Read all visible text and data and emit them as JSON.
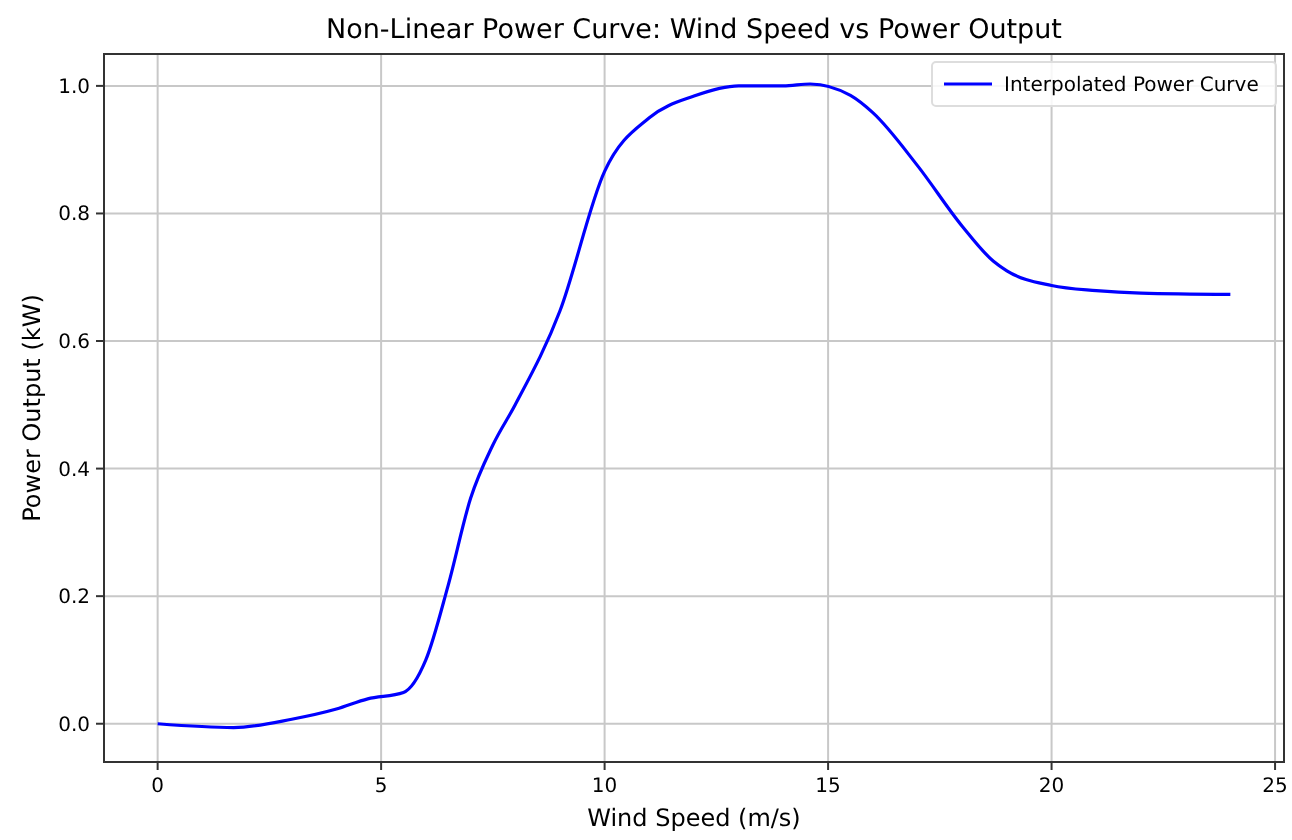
{
  "chart_data": {
    "type": "line",
    "title": "Non-Linear Power Curve: Wind Speed vs Power Output",
    "xlabel": "Wind Speed (m/s)",
    "ylabel": "Power Output (kW)",
    "x": [
      0,
      1.7,
      3,
      4,
      4.7,
      5.5,
      6,
      6.5,
      7,
      7.5,
      8,
      9,
      10,
      11,
      12,
      13,
      14,
      14.6,
      15.5,
      16,
      17,
      18,
      18.7,
      19,
      20,
      21,
      22,
      24
    ],
    "series": [
      {
        "name": "Interpolated Power Curve",
        "color": "#0000ff",
        "values": [
          0,
          -0.006,
          0.007,
          0.023,
          0.039,
          0.049,
          0.1,
          0.217,
          0.353,
          0.437,
          0.5,
          0.647,
          0.866,
          0.95,
          0.984,
          1.0,
          1.0,
          1.003,
          0.985,
          0.958,
          0.875,
          0.78,
          0.725,
          0.71,
          0.687,
          0.679,
          0.675,
          0.673
        ]
      }
    ],
    "xlim": [
      -1.2,
      25.2
    ],
    "ylim": [
      -0.06,
      1.05
    ],
    "xticks": [
      0,
      5,
      10,
      15,
      20,
      25
    ],
    "yticks": [
      {
        "value": 0,
        "label": "0.0"
      },
      {
        "value": 0.2,
        "label": "0.2"
      },
      {
        "value": 0.4,
        "label": "0.4"
      },
      {
        "value": 0.6,
        "label": "0.6"
      },
      {
        "value": 0.8,
        "label": "0.8"
      },
      {
        "value": 1.0,
        "label": "1.0"
      }
    ],
    "grid": true,
    "legend": "top right",
    "line_style": "solid",
    "marker": "none"
  }
}
